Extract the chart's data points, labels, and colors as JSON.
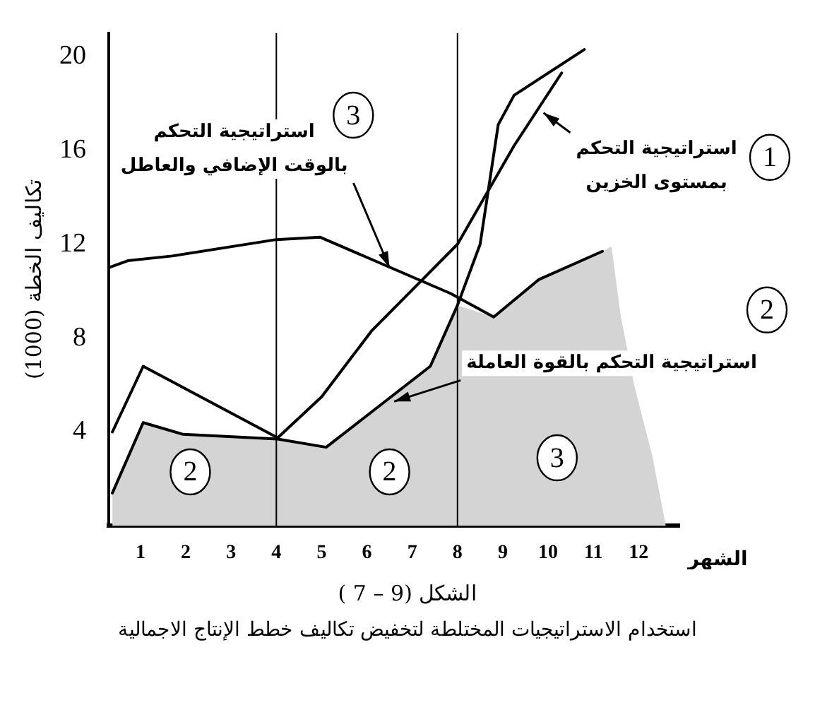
{
  "chart_data": {
    "type": "line",
    "title": "الشكل (9 – 7 )",
    "subtitle": "استخدام الاستراتيجيات المختلطة لتخفيض تكاليف خطط الإنتاج الاجمالية",
    "xlabel": "الشهر",
    "ylabel": "تكاليف الخطة (1000)",
    "xlim": [
      0.3,
      12.9
    ],
    "xticks": [
      1,
      2,
      3,
      4,
      5,
      6,
      7,
      8,
      9,
      10,
      11,
      12
    ],
    "ylim": [
      0,
      21
    ],
    "yticks": [
      4,
      8,
      12,
      16,
      20
    ],
    "series": [
      {
        "type": "area",
        "color": "#d4d4d4",
        "x": [
          0.38,
          1.06,
          1.94,
          4.03,
          5.1,
          7.4,
          8,
          8.8,
          9.8,
          11.2,
          11.4,
          11.6,
          11.9,
          12.3,
          12.6
        ],
        "values": [
          1.4,
          4.4,
          3.9,
          3.7,
          3.35,
          6.8,
          9.4,
          8.9,
          10.5,
          11.7,
          11.9,
          9,
          6,
          3,
          0
        ]
      },
      {
        "type": "line",
        "color": "#000000",
        "x": [
          0.38,
          1.06,
          1.94,
          4.03,
          5.1,
          7.4,
          8,
          8.5,
          8.9,
          9.25,
          10.8
        ],
        "values": [
          1.4,
          4.4,
          3.9,
          3.7,
          3.35,
          6.8,
          9.4,
          12,
          17.1,
          18.35,
          20.3
        ]
      },
      {
        "type": "line",
        "color": "#000000",
        "x": [
          0.38,
          1.06,
          4.03,
          5,
          6.1,
          8,
          9.25,
          10.3
        ],
        "values": [
          4,
          6.8,
          3.75,
          5.5,
          8.3,
          12,
          16.2,
          19.3
        ]
      },
      {
        "type": "line",
        "color": "#000000",
        "x": [
          0.3,
          0.72,
          1.7,
          4,
          4.97,
          7.85,
          8.8,
          9.8,
          11.2
        ],
        "values": [
          11,
          11.3,
          11.5,
          12.2,
          12.3,
          9.9,
          8.9,
          10.5,
          11.7
        ]
      }
    ],
    "ref_lines": [
      {
        "axis": "x",
        "value": 4,
        "color": "#000000"
      },
      {
        "axis": "x",
        "value": 8,
        "color": "#000000"
      }
    ],
    "annotations": [
      {
        "text": "استراتيجية التحكم\nبمستوى الخزين",
        "x": 9.9,
        "y": 17.6
      },
      "1",
      {
        "text": "استراتيجية التحكم\nبالوقت الإضافي والعاطل",
        "x": 6.5,
        "y": 11.0
      },
      {
        "text": "3",
        "x": 5.7,
        "y": 17.5
      },
      {
        "text": "استراتيجية التحكم بالقوة العاملة",
        "x": 6.6,
        "y": 5.3
      },
      "2",
      {
        "text": "2",
        "x": 2.1,
        "y": 2.3
      },
      {
        "text": "2",
        "x": 6.5,
        "y": 2.3
      },
      {
        "text": "3",
        "x": 10.2,
        "y": 2.9
      }
    ],
    "grid": false,
    "legend": false,
    "marker": "none",
    "line_style": "solid"
  }
}
